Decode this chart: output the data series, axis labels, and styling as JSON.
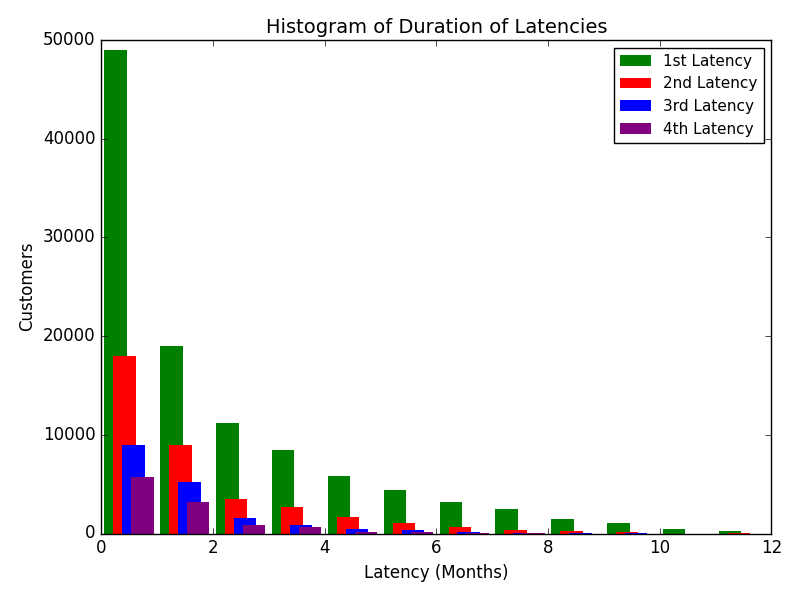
{
  "title": "Histogram of Duration of Latencies",
  "xlabel": "Latency (Months)",
  "ylabel": "Customers",
  "xlim": [
    0,
    12
  ],
  "ylim": [
    0,
    50000
  ],
  "yticks": [
    0,
    10000,
    20000,
    30000,
    40000,
    50000
  ],
  "xticks": [
    0,
    2,
    4,
    6,
    8,
    10,
    12
  ],
  "bar_width": 0.4,
  "series": [
    {
      "label": "1st Latency",
      "color": "#008000",
      "offsets": -0.6,
      "values": [
        49000,
        19000,
        11200,
        8500,
        5800,
        4400,
        3200,
        2500,
        1500,
        1100,
        500,
        300
      ]
    },
    {
      "label": "2nd Latency",
      "color": "#ff0000",
      "offsets": -0.2,
      "values": [
        18000,
        9000,
        3500,
        2700,
        1700,
        1100,
        700,
        400,
        300,
        150,
        0,
        100
      ]
    },
    {
      "label": "3rd Latency",
      "color": "#0000ff",
      "offsets": 0.2,
      "values": [
        9000,
        5200,
        1600,
        900,
        500,
        400,
        200,
        100,
        100,
        50,
        0,
        0
      ]
    },
    {
      "label": "4th Latency",
      "color": "#800080",
      "offsets": 0.6,
      "values": [
        5700,
        3200,
        900,
        700,
        200,
        200,
        100,
        50,
        0,
        0,
        0,
        0
      ]
    }
  ],
  "base_positions": [
    0.5,
    1.5,
    2.5,
    3.5,
    4.5,
    5.5,
    6.5,
    7.5,
    8.5,
    9.5,
    10.5,
    11.5
  ],
  "legend_loc": "upper right",
  "background_color": "#ffffff",
  "figsize": [
    8.0,
    6.0
  ],
  "dpi": 100,
  "style": "classic"
}
